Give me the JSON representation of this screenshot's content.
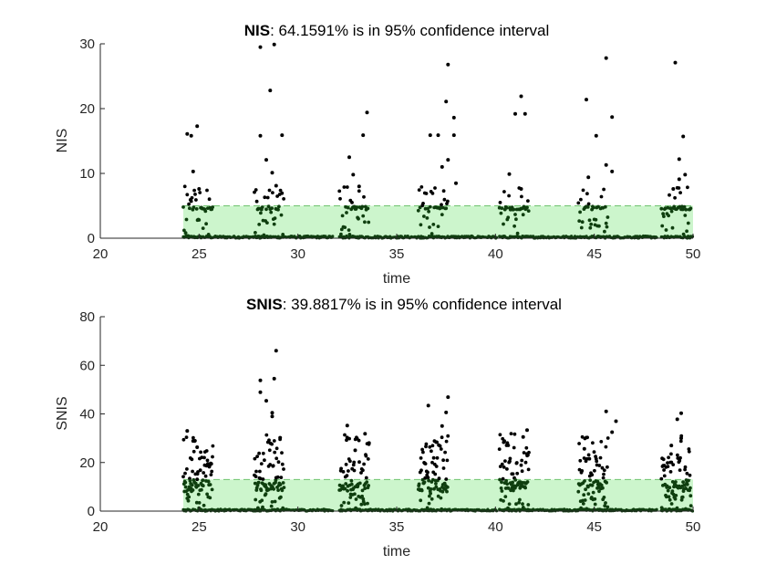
{
  "chart_data": [
    {
      "type": "scatter",
      "title_bold": "NIS",
      "title_rest": ": 64.1591% is in 95% confidence interval",
      "xlabel": "time",
      "ylabel": "NIS",
      "xlim": [
        20,
        50
      ],
      "ylim": [
        0,
        30
      ],
      "xticks": [
        20,
        25,
        30,
        35,
        40,
        45,
        50
      ],
      "yticks": [
        0,
        10,
        20,
        30
      ],
      "confidence_band": [
        0,
        5
      ],
      "band_start": 24.2,
      "cycles": [
        24.2,
        27.8,
        32.1,
        36.1,
        40.2,
        44.2,
        48.4
      ],
      "outliers": [
        [
          24.4,
          16.1
        ],
        [
          24.6,
          15.8
        ],
        [
          24.9,
          17.3
        ],
        [
          24.7,
          10.3
        ],
        [
          25.0,
          7.6
        ],
        [
          28.1,
          29.5
        ],
        [
          28.8,
          29.9
        ],
        [
          28.6,
          22.8
        ],
        [
          28.1,
          15.8
        ],
        [
          29.2,
          15.9
        ],
        [
          28.4,
          12.1
        ],
        [
          28.7,
          10.1
        ],
        [
          28.9,
          8.1
        ],
        [
          33.5,
          19.4
        ],
        [
          33.3,
          15.9
        ],
        [
          32.6,
          12.5
        ],
        [
          32.8,
          9.8
        ],
        [
          33.1,
          8.0
        ],
        [
          37.6,
          26.8
        ],
        [
          37.5,
          21.1
        ],
        [
          37.9,
          18.6
        ],
        [
          36.7,
          15.9
        ],
        [
          37.1,
          15.9
        ],
        [
          37.9,
          15.9
        ],
        [
          37.6,
          12.1
        ],
        [
          37.3,
          11.0
        ],
        [
          38.0,
          8.5
        ],
        [
          41.3,
          21.9
        ],
        [
          41.0,
          19.2
        ],
        [
          41.5,
          19.2
        ],
        [
          40.7,
          9.9
        ],
        [
          41.3,
          7.6
        ],
        [
          44.6,
          21.4
        ],
        [
          45.6,
          27.8
        ],
        [
          45.9,
          18.7
        ],
        [
          45.1,
          15.8
        ],
        [
          45.6,
          11.3
        ],
        [
          44.7,
          9.4
        ],
        [
          45.9,
          10.3
        ],
        [
          49.1,
          27.1
        ],
        [
          49.5,
          15.7
        ],
        [
          49.3,
          12.2
        ],
        [
          49.6,
          9.8
        ],
        [
          49.3,
          9.1
        ],
        [
          49.0,
          7.6
        ]
      ]
    },
    {
      "type": "scatter",
      "title_bold": "SNIS",
      "title_rest": ": 39.8817% is in 95% confidence interval",
      "xlabel": "time",
      "ylabel": "SNIS",
      "xlim": [
        20,
        50
      ],
      "ylim": [
        0,
        80
      ],
      "xticks": [
        20,
        25,
        30,
        35,
        40,
        45,
        50
      ],
      "yticks": [
        0,
        20,
        40,
        60,
        80
      ],
      "confidence_band": [
        0,
        13
      ],
      "band_start": 24.2,
      "cycles": [
        24.2,
        27.8,
        32.1,
        36.1,
        40.2,
        44.2,
        48.4
      ],
      "outliers": [
        [
          28.9,
          66.0
        ],
        [
          28.8,
          54.5
        ],
        [
          28.1,
          53.8
        ],
        [
          28.1,
          48.9
        ],
        [
          28.4,
          45.4
        ],
        [
          28.7,
          40.5
        ],
        [
          28.7,
          39.0
        ],
        [
          29.1,
          30.2
        ],
        [
          24.4,
          33.0
        ],
        [
          24.7,
          28.9
        ],
        [
          24.9,
          26.3
        ],
        [
          32.5,
          35.2
        ],
        [
          33.4,
          31.8
        ],
        [
          33.6,
          28.0
        ],
        [
          32.9,
          25.0
        ],
        [
          36.6,
          43.4
        ],
        [
          37.6,
          46.9
        ],
        [
          37.5,
          40.6
        ],
        [
          37.3,
          35.0
        ],
        [
          37.0,
          28.4
        ],
        [
          41.6,
          33.3
        ],
        [
          41.4,
          30.5
        ],
        [
          40.6,
          28.0
        ],
        [
          45.6,
          41.0
        ],
        [
          46.1,
          37.0
        ],
        [
          45.9,
          32.5
        ],
        [
          44.5,
          25.6
        ],
        [
          49.4,
          40.3
        ],
        [
          49.2,
          37.8
        ],
        [
          49.4,
          30.0
        ],
        [
          48.9,
          27.0
        ]
      ]
    }
  ],
  "colors": {
    "band_fill": "#ccf5cc",
    "band_edge": "#6fc36f",
    "marker": "#000000",
    "marker_in_band": "#0f3f0f",
    "axis": "#262626"
  }
}
